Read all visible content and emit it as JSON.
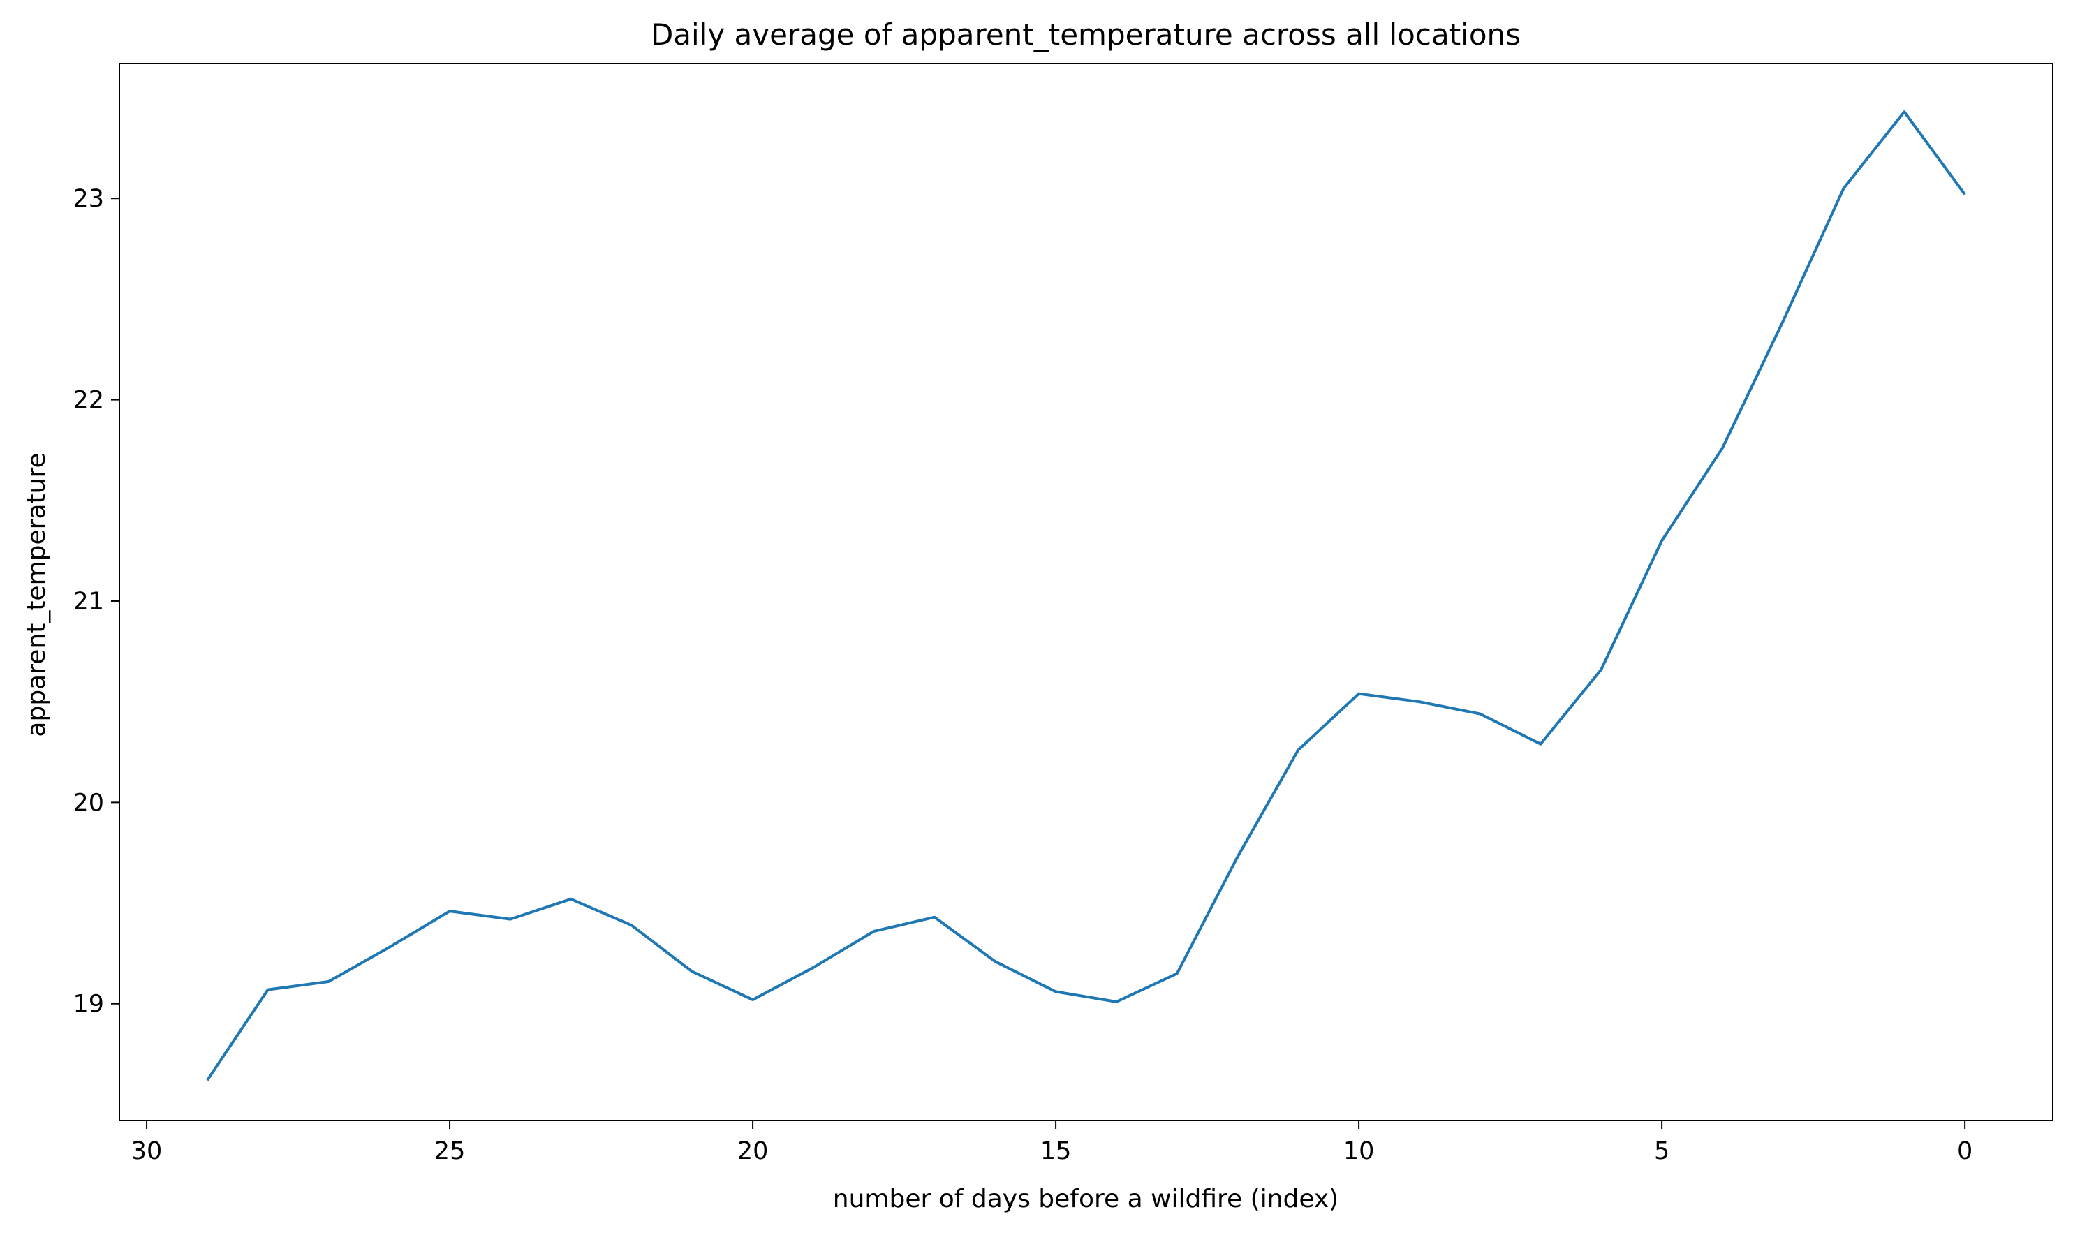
{
  "chart_data": {
    "type": "line",
    "title": "Daily average of apparent_temperature across all locations",
    "xlabel": "number of days before a wildfire (index)",
    "ylabel": "apparent_temperature",
    "x_axis_inverted": true,
    "xlim": [
      30.45,
      -1.45
    ],
    "ylim": [
      18.42,
      23.67
    ],
    "xticks": [
      30,
      25,
      20,
      15,
      10,
      5,
      0
    ],
    "xtick_labels": [
      "30",
      "25",
      "20",
      "15",
      "10",
      "5",
      "0"
    ],
    "yticks": [
      19,
      20,
      21,
      22,
      23
    ],
    "ytick_labels": [
      "19",
      "20",
      "21",
      "22",
      "23"
    ],
    "grid": false,
    "series": [
      {
        "color": "#1f77b4",
        "x": [
          29,
          28,
          27,
          26,
          25,
          24,
          23,
          22,
          21,
          20,
          19,
          18,
          17,
          16,
          15,
          14,
          13,
          12,
          11,
          10,
          9,
          8,
          7,
          6,
          5,
          4,
          3,
          2,
          1,
          0
        ],
        "values": [
          18.62,
          19.07,
          19.11,
          19.28,
          19.46,
          19.42,
          19.52,
          19.39,
          19.16,
          19.02,
          19.18,
          19.36,
          19.43,
          19.21,
          19.06,
          19.01,
          19.15,
          19.73,
          20.26,
          20.54,
          20.5,
          20.44,
          20.29,
          20.66,
          21.3,
          21.76,
          22.39,
          23.05,
          23.43,
          23.02
        ]
      }
    ]
  }
}
